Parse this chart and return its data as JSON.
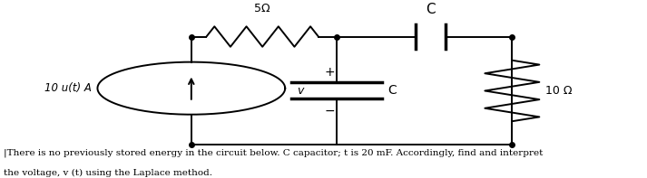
{
  "bg_color": "#ffffff",
  "resistor_label": "5Ω",
  "res2_label": "10 Ω",
  "cap_top_label": "C",
  "cap_label": "C",
  "source_label": "10 u(t) A",
  "text_line1": "|There is no previously stored energy in the circuit below. C capacitor; t is 20 mF. Accordingly, find and interpret",
  "text_line2": "the voltage, v (t) using the Laplace method.",
  "fontsize_txt": 7.5
}
